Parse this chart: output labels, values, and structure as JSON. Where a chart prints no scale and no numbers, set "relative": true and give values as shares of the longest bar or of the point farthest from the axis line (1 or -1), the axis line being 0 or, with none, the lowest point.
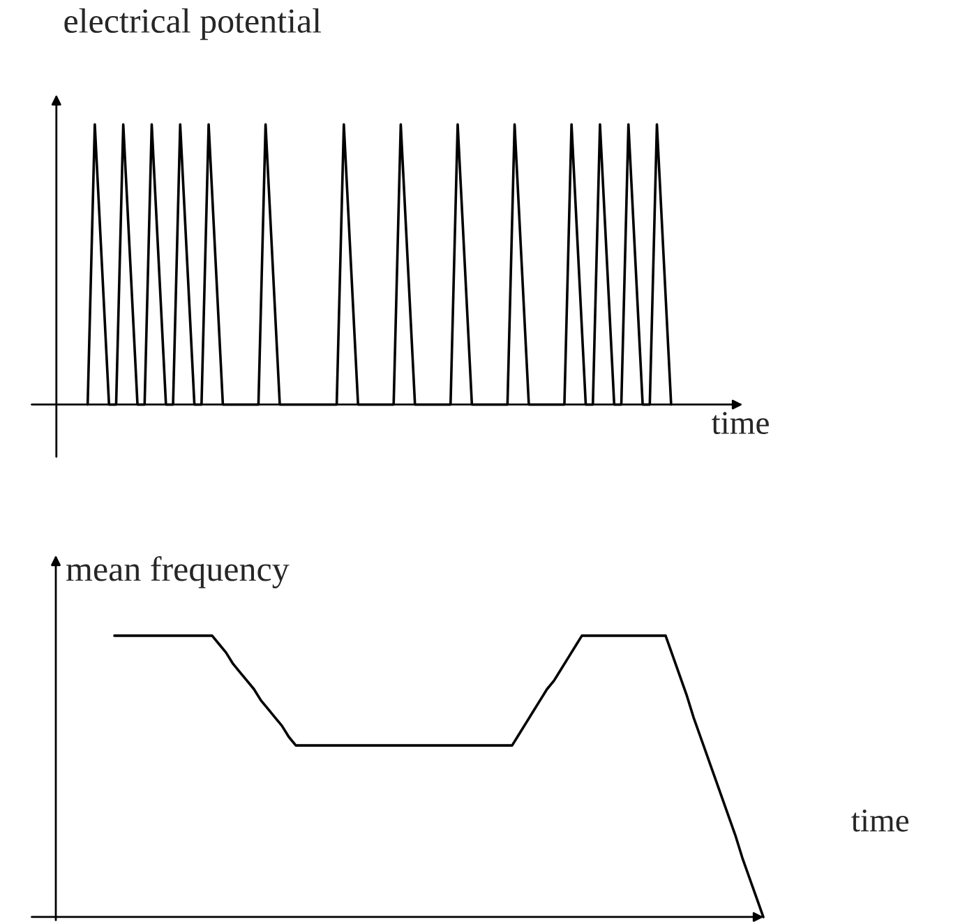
{
  "chart_data": [
    {
      "type": "line",
      "relative": true,
      "ylabel": "electrical potential",
      "xlabel": "time",
      "marker": "none",
      "line_style": "solid",
      "color": "#000000",
      "categories": [
        null,
        null,
        null,
        null,
        null,
        null,
        null,
        null,
        null,
        null,
        null,
        null,
        null,
        null,
        null,
        null,
        null,
        null,
        null,
        null,
        null,
        null,
        null,
        null,
        null,
        null,
        null,
        null,
        null,
        null,
        null,
        null,
        null,
        null,
        null,
        null,
        null,
        null,
        null,
        null,
        null,
        null,
        null,
        null,
        null,
        null,
        null,
        null,
        null,
        null,
        null,
        null,
        null,
        null,
        null,
        null,
        null,
        null,
        null,
        null,
        null,
        null,
        null,
        null,
        null,
        null,
        null,
        null,
        null,
        null,
        null,
        null,
        null,
        null,
        null,
        null,
        null,
        null,
        null,
        null,
        null,
        null,
        null
      ],
      "values": [
        0,
        1,
        0.5,
        0,
        0,
        1,
        0.5,
        0,
        0,
        1,
        0.5,
        0,
        0,
        1,
        0.5,
        0,
        0,
        1,
        0.5,
        0,
        0,
        0,
        0,
        0,
        0,
        1,
        0.5,
        0,
        0,
        0,
        0,
        0,
        0,
        0,
        0,
        0,
        1,
        0.5,
        0,
        0,
        0,
        0,
        0,
        0,
        1,
        0.5,
        0,
        0,
        0,
        0,
        0,
        0,
        1,
        0.5,
        0,
        0,
        0,
        0,
        0,
        0,
        1,
        0.5,
        0,
        0,
        0,
        0,
        0,
        0,
        1,
        0.5,
        0,
        0,
        1,
        0.5,
        0,
        0,
        1,
        0.5,
        0,
        0,
        1,
        0.5,
        0
      ]
    },
    {
      "type": "line",
      "relative": true,
      "ylabel": "mean frequency",
      "xlabel": "time",
      "marker": "none",
      "line_style": "solid",
      "color": "#000000",
      "categories": [
        null,
        null,
        null,
        null,
        null,
        null,
        null,
        null,
        null,
        null,
        null,
        null,
        null,
        null,
        null,
        null,
        null,
        null,
        null,
        null,
        null,
        null,
        null,
        null,
        null,
        null,
        null,
        null,
        null,
        null,
        null,
        null,
        null,
        null,
        null,
        null,
        null,
        null,
        null,
        null,
        null,
        null,
        null,
        null,
        null,
        null,
        null,
        null,
        null,
        null,
        null,
        null,
        null,
        null,
        null,
        null,
        null,
        null,
        null,
        null,
        null,
        null,
        null,
        null,
        null,
        null,
        null,
        null,
        null,
        null,
        null,
        null,
        null,
        null,
        null,
        null,
        null,
        null,
        null,
        null,
        null,
        null,
        null,
        null,
        null,
        null,
        null,
        null,
        null,
        null,
        null,
        null,
        null,
        null
      ],
      "values": [
        1,
        1,
        1,
        1,
        1,
        1,
        1,
        1,
        1,
        1,
        1,
        1,
        1,
        1,
        1,
        0.97,
        0.94,
        0.9,
        0.87,
        0.84,
        0.81,
        0.77,
        0.74,
        0.71,
        0.68,
        0.64,
        0.61,
        0.61,
        0.61,
        0.61,
        0.61,
        0.61,
        0.61,
        0.61,
        0.61,
        0.61,
        0.61,
        0.61,
        0.61,
        0.61,
        0.61,
        0.61,
        0.61,
        0.61,
        0.61,
        0.61,
        0.61,
        0.61,
        0.61,
        0.61,
        0.61,
        0.61,
        0.61,
        0.61,
        0.61,
        0.61,
        0.61,
        0.61,
        0.65,
        0.69,
        0.73,
        0.77,
        0.81,
        0.84,
        0.88,
        0.92,
        0.96,
        1,
        1,
        1,
        1,
        1,
        1,
        1,
        1,
        1,
        1,
        1,
        1,
        1,
        0.93,
        0.86,
        0.79,
        0.71,
        0.64,
        0.57,
        0.5,
        0.43,
        0.36,
        0.29,
        0.21,
        0.14,
        0.07,
        0
      ]
    }
  ]
}
